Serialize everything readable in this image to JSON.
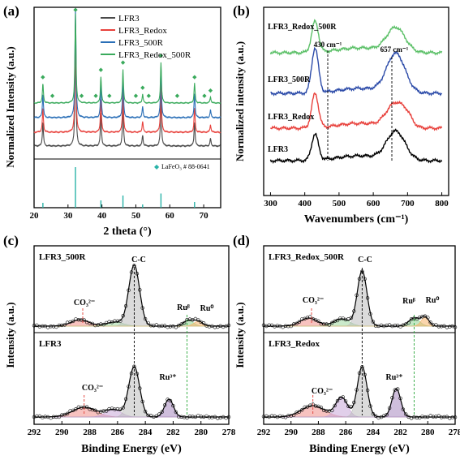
{
  "panel_labels": [
    "(a)",
    "(b)",
    "(c)",
    "(d)"
  ],
  "chart_data": [
    {
      "panel": "(a)",
      "type": "line",
      "xlabel": "2 theta (°)",
      "ylabel": "Normalized Intensity (a.u.)",
      "xlim": [
        20,
        75
      ],
      "xticks": [
        "20",
        "30",
        "40",
        "50",
        "60",
        "70"
      ],
      "legend_position": "top-right",
      "series": [
        {
          "name": "LFR3",
          "color": "#4a4a4a",
          "offset": 0
        },
        {
          "name": "LFR3_Redox",
          "color": "#e8413c",
          "offset": 1
        },
        {
          "name": "LFR3_500R",
          "color": "#2a6fb7",
          "offset": 2
        },
        {
          "name": "LFR3_Redox_500R",
          "color": "#3aaa5c",
          "offset": 3
        }
      ],
      "peaks": [
        {
          "x": 22.6,
          "h": 0.22
        },
        {
          "x": 32.2,
          "h": 1.0
        },
        {
          "x": 39.7,
          "h": 0.3
        },
        {
          "x": 46.2,
          "h": 0.38
        },
        {
          "x": 52.0,
          "h": 0.1
        },
        {
          "x": 57.4,
          "h": 0.46
        },
        {
          "x": 67.3,
          "h": 0.22
        },
        {
          "x": 72.0,
          "h": 0.07
        }
      ],
      "peak_markers_x": [
        22.6,
        25.4,
        32.2,
        34.0,
        38.2,
        39.7,
        42.2,
        46.2,
        50.0,
        52.0,
        53.8,
        57.4,
        62.2,
        67.3,
        70.2,
        72.0
      ],
      "reference": {
        "label": "LaFeO₃ # 88-0641",
        "color": "#2ab3a8",
        "lines": [
          {
            "x": 22.6,
            "h": 0.12
          },
          {
            "x": 32.2,
            "h": 1.0
          },
          {
            "x": 39.7,
            "h": 0.18
          },
          {
            "x": 46.2,
            "h": 0.3
          },
          {
            "x": 52.0,
            "h": 0.08
          },
          {
            "x": 57.4,
            "h": 0.35
          },
          {
            "x": 67.3,
            "h": 0.14
          }
        ]
      }
    },
    {
      "panel": "(b)",
      "type": "line",
      "xlabel": "Wavenumbers (cm⁻¹)",
      "ylabel": "Normalized intensity (a.u.)",
      "xlim": [
        280,
        820
      ],
      "xticks": [
        "300",
        "400",
        "500",
        "600",
        "700",
        "800"
      ],
      "annotations": [
        "430 cm⁻¹",
        "657 cm⁻¹"
      ],
      "series": [
        {
          "name": "LFR3",
          "color": "#000000",
          "offset": 0
        },
        {
          "name": "LFR3_Redox",
          "color": "#e8413c",
          "offset": 1
        },
        {
          "name": "LFR3_500R",
          "color": "#2b4aa8",
          "offset": 2
        },
        {
          "name": "LFR3_Redox_500R",
          "color": "#5cc068",
          "offset": 3
        }
      ]
    },
    {
      "panel": "(c)",
      "type": "line",
      "xlabel": "Binding Energy (eV)",
      "ylabel": "Intensity (a.u.)",
      "xlim": [
        292,
        278
      ],
      "xticks": [
        "292",
        "290",
        "288",
        "286",
        "284",
        "282",
        "280",
        "278"
      ],
      "subplots": [
        {
          "name": "LFR3_500R",
          "annotations": [
            "C-C",
            "CO₃²⁻",
            "Ruᵝ",
            "Ru⁰"
          ]
        },
        {
          "name": "LFR3",
          "annotations": [
            "CO₃²⁻",
            "Ru³⁺"
          ]
        }
      ]
    },
    {
      "panel": "(d)",
      "type": "line",
      "xlabel": "Binding Energy (eV)",
      "ylabel": "Intensity (a.u.)",
      "xlim": [
        292,
        278
      ],
      "xticks": [
        "292",
        "290",
        "288",
        "286",
        "284",
        "282",
        "280",
        "278"
      ],
      "subplots": [
        {
          "name": "LFR3_Redox_500R",
          "annotations": [
            "C-C",
            "CO₃²⁻",
            "Ruᵝ",
            "Ru⁰"
          ]
        },
        {
          "name": "LFR3_Redox",
          "annotations": [
            "CO₃²⁻",
            "Ru³⁺"
          ]
        }
      ]
    }
  ]
}
